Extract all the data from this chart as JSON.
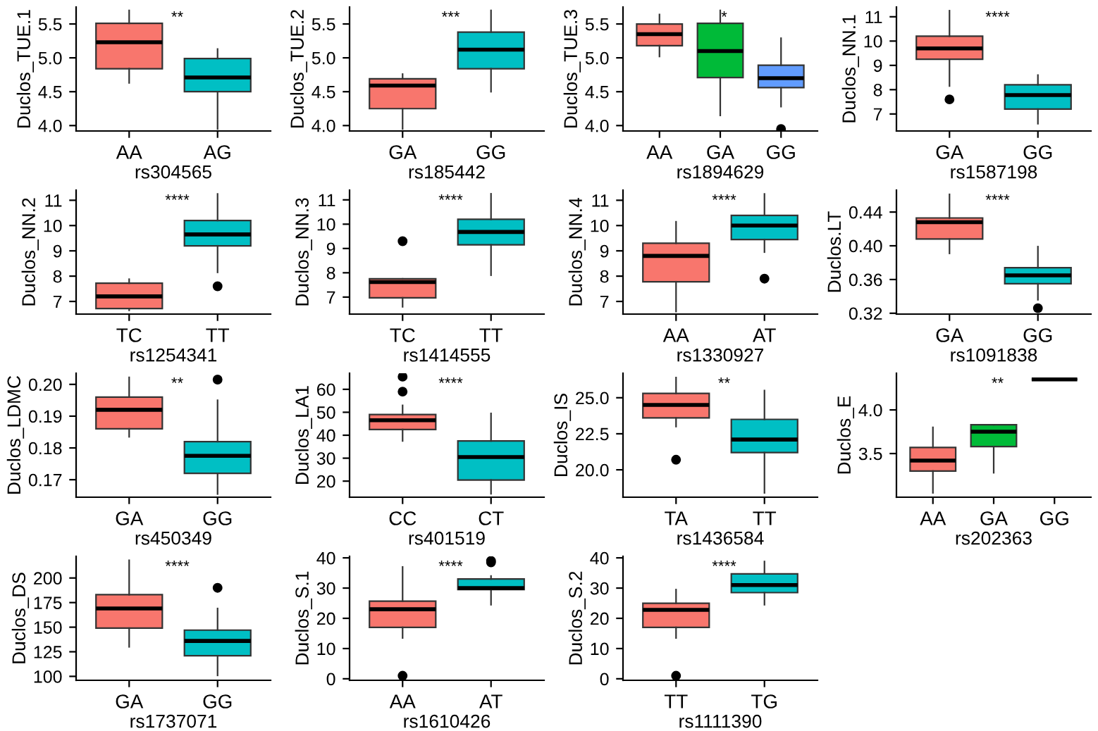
{
  "chart_data": [
    {
      "type": "box",
      "xlabel": "rs304565",
      "ylabel": "Duclos_TUE.1",
      "categories": [
        "AA",
        "AG"
      ],
      "colors": [
        "#f8766d",
        "#00bfc4"
      ],
      "ylim": [
        3.92,
        5.75
      ],
      "yticks": [
        {
          "value": 4.0,
          "label": "4.0"
        },
        {
          "value": 4.5,
          "label": "4.5"
        },
        {
          "value": 5.0,
          "label": "5.0"
        },
        {
          "value": 5.5,
          "label": "5.5"
        }
      ],
      "annotations": [
        "**"
      ],
      "boxes": [
        {
          "low": 4.63,
          "q1": 4.84,
          "median": 5.23,
          "q3": 5.51,
          "high": 5.7
        },
        {
          "low": 3.95,
          "q1": 4.5,
          "median": 4.71,
          "q3": 4.99,
          "high": 5.13
        }
      ]
    },
    {
      "type": "box",
      "xlabel": "rs185442",
      "ylabel": "Duclos_TUE.2",
      "categories": [
        "GA",
        "GG"
      ],
      "colors": [
        "#f8766d",
        "#00bfc4"
      ],
      "ylim": [
        3.92,
        5.75
      ],
      "yticks": [
        {
          "value": 4.0,
          "label": "4.0"
        },
        {
          "value": 4.5,
          "label": "4.5"
        },
        {
          "value": 5.0,
          "label": "5.0"
        },
        {
          "value": 5.5,
          "label": "5.5"
        }
      ],
      "annotations": [
        "***"
      ],
      "boxes": [
        {
          "low": 3.95,
          "q1": 4.25,
          "median": 4.59,
          "q3": 4.69,
          "high": 4.76
        },
        {
          "low": 4.5,
          "q1": 4.84,
          "median": 5.12,
          "q3": 5.38,
          "high": 5.7
        }
      ]
    },
    {
      "type": "box",
      "xlabel": "rs1894629",
      "ylabel": "Duclos_TUE.3",
      "categories": [
        "AA",
        "GA",
        "GG"
      ],
      "colors": [
        "#f8766d",
        "#00ba38",
        "#619cff"
      ],
      "ylim": [
        3.92,
        5.75
      ],
      "yticks": [
        {
          "value": 4.0,
          "label": "4.0"
        },
        {
          "value": 4.5,
          "label": "4.5"
        },
        {
          "value": 5.0,
          "label": "5.0"
        },
        {
          "value": 5.5,
          "label": "5.5"
        }
      ],
      "annotations": [
        "*"
      ],
      "boxes": [
        {
          "low": 5.02,
          "q1": 5.18,
          "median": 5.35,
          "q3": 5.5,
          "high": 5.64
        },
        {
          "low": 4.15,
          "q1": 4.71,
          "median": 5.1,
          "q3": 5.51,
          "high": 5.7
        },
        {
          "low": 4.28,
          "q1": 4.56,
          "median": 4.7,
          "q3": 4.89,
          "high": 5.29,
          "outliers": [
            3.95
          ]
        }
      ]
    },
    {
      "type": "box",
      "xlabel": "rs1587198",
      "ylabel": "Duclos_NN.1",
      "categories": [
        "GA",
        "GG"
      ],
      "colors": [
        "#f8766d",
        "#00bfc4"
      ],
      "ylim": [
        6.3,
        11.4
      ],
      "yticks": [
        7,
        8,
        9,
        10,
        11
      ],
      "annotations": [
        "****"
      ],
      "boxes": [
        {
          "low": 8.15,
          "q1": 9.25,
          "median": 9.7,
          "q3": 10.2,
          "high": 11.25,
          "outliers": [
            7.6
          ]
        },
        {
          "low": 6.6,
          "q1": 7.2,
          "median": 7.78,
          "q3": 8.2,
          "high": 8.6
        }
      ]
    },
    {
      "type": "box",
      "xlabel": "rs1254341",
      "ylabel": "Duclos_NN.2",
      "categories": [
        "TC",
        "TT"
      ],
      "colors": [
        "#f8766d",
        "#00bfc4"
      ],
      "ylim": [
        6.5,
        11.4
      ],
      "yticks": [
        7,
        8,
        9,
        10,
        11
      ],
      "annotations": [
        "****"
      ],
      "boxes": [
        {
          "low": 6.65,
          "q1": 6.72,
          "median": 7.2,
          "q3": 7.72,
          "high": 7.88
        },
        {
          "low": 8.15,
          "q1": 9.2,
          "median": 9.65,
          "q3": 10.2,
          "high": 11.25,
          "outliers": [
            7.6
          ]
        }
      ]
    },
    {
      "type": "box",
      "xlabel": "rs1414555",
      "ylabel": "Duclos_NN.3",
      "categories": [
        "TC",
        "TT"
      ],
      "colors": [
        "#f8766d",
        "#00bfc4"
      ],
      "ylim": [
        6.3,
        11.4
      ],
      "yticks": [
        7,
        8,
        9,
        10,
        11
      ],
      "annotations": [
        "****"
      ],
      "boxes": [
        {
          "low": 6.6,
          "q1": 6.97,
          "median": 7.62,
          "q3": 7.75,
          "high": 7.75,
          "outliers": [
            9.3
          ]
        },
        {
          "low": 7.9,
          "q1": 9.15,
          "median": 9.68,
          "q3": 10.2,
          "high": 11.25
        }
      ]
    },
    {
      "type": "box",
      "xlabel": "rs1330927",
      "ylabel": "Duclos_NN.4",
      "categories": [
        "AA",
        "AT"
      ],
      "colors": [
        "#f8766d",
        "#00bfc4"
      ],
      "ylim": [
        6.5,
        11.4
      ],
      "yticks": [
        7,
        8,
        9,
        10,
        11
      ],
      "annotations": [
        "****"
      ],
      "boxes": [
        {
          "low": 6.6,
          "q1": 7.78,
          "median": 8.8,
          "q3": 9.3,
          "high": 10.15
        },
        {
          "low": 8.95,
          "q1": 9.45,
          "median": 10.0,
          "q3": 10.4,
          "high": 11.25,
          "outliers": [
            7.9
          ]
        }
      ]
    },
    {
      "type": "box",
      "xlabel": "rs1091838",
      "ylabel": "Duclos.LT",
      "categories": [
        "GA",
        "GG"
      ],
      "colors": [
        "#f8766d",
        "#00bfc4"
      ],
      "ylim": [
        0.319,
        0.466
      ],
      "yticks": [
        {
          "value": 0.32,
          "label": "0.32"
        },
        {
          "value": 0.36,
          "label": "0.36"
        },
        {
          "value": 0.4,
          "label": "0.40"
        },
        {
          "value": 0.44,
          "label": "0.44"
        }
      ],
      "annotations": [
        "****"
      ],
      "boxes": [
        {
          "low": 0.391,
          "q1": 0.408,
          "median": 0.428,
          "q3": 0.433,
          "high": 0.461
        },
        {
          "low": 0.336,
          "q1": 0.355,
          "median": 0.365,
          "q3": 0.374,
          "high": 0.399,
          "outliers": [
            0.326
          ]
        }
      ]
    },
    {
      "type": "box",
      "xlabel": "rs450349",
      "ylabel": "Duclos_LDMC",
      "categories": [
        "GA",
        "GG"
      ],
      "colors": [
        "#f8766d",
        "#00bfc4"
      ],
      "ylim": [
        0.1645,
        0.2035
      ],
      "yticks": [
        {
          "value": 0.17,
          "label": "0.17"
        },
        {
          "value": 0.18,
          "label": "0.18"
        },
        {
          "value": 0.19,
          "label": "0.19"
        },
        {
          "value": 0.2,
          "label": "0.20"
        }
      ],
      "annotations": [
        "**"
      ],
      "boxes": [
        {
          "low": 0.1835,
          "q1": 0.186,
          "median": 0.192,
          "q3": 0.196,
          "high": 0.2022
        },
        {
          "low": 0.1655,
          "q1": 0.172,
          "median": 0.1775,
          "q3": 0.182,
          "high": 0.195,
          "outliers": [
            0.2015
          ]
        }
      ]
    },
    {
      "type": "box",
      "xlabel": "rs401519",
      "ylabel": "Duclos_LA1",
      "categories": [
        "CC",
        "CT"
      ],
      "colors": [
        "#f8766d",
        "#00bfc4"
      ],
      "ylim": [
        13,
        67
      ],
      "yticks": [
        20,
        30,
        40,
        50,
        60
      ],
      "annotations": [
        "****"
      ],
      "boxes": [
        {
          "low": 37.5,
          "q1": 42.5,
          "median": 46.5,
          "q3": 49,
          "high": 53,
          "outliers": [
            59,
            65.5
          ]
        },
        {
          "low": 14.5,
          "q1": 20.5,
          "median": 30.5,
          "q3": 37.5,
          "high": 49.5
        }
      ]
    },
    {
      "type": "box",
      "xlabel": "rs1436584",
      "ylabel": "Duclos_IS",
      "categories": [
        "TA",
        "TT"
      ],
      "colors": [
        "#f8766d",
        "#00bfc4"
      ],
      "ylim": [
        18.1,
        26.7
      ],
      "yticks": [
        {
          "value": 20,
          "label": "20.0"
        },
        {
          "value": 22.5,
          "label": "22.5"
        },
        {
          "value": 25,
          "label": "25.0"
        }
      ],
      "annotations": [
        "**"
      ],
      "boxes": [
        {
          "low": 23.0,
          "q1": 23.6,
          "median": 24.5,
          "q3": 25.3,
          "high": 26.4,
          "outliers": [
            20.7
          ]
        },
        {
          "low": 18.4,
          "q1": 21.2,
          "median": 22.1,
          "q3": 23.5,
          "high": 25.5
        }
      ]
    },
    {
      "type": "box",
      "xlabel": "rs202363",
      "ylabel": "Duclos_E",
      "categories": [
        "AA",
        "GA",
        "GG"
      ],
      "colors": [
        "#f8766d",
        "#00ba38",
        "#000000"
      ],
      "ylim": [
        3.0,
        4.42
      ],
      "yticks": [
        {
          "value": 3.5,
          "label": "3.5"
        },
        {
          "value": 4.0,
          "label": "4.0"
        }
      ],
      "annotations": [
        "**"
      ],
      "boxes": [
        {
          "low": 3.05,
          "q1": 3.3,
          "median": 3.42,
          "q3": 3.57,
          "high": 3.8
        },
        {
          "low": 3.28,
          "q1": 3.58,
          "median": 3.75,
          "q3": 3.83,
          "high": 3.83
        },
        {
          "low": 4.35,
          "q1": 4.35,
          "median": 4.35,
          "q3": 4.35,
          "high": 4.35
        }
      ]
    },
    {
      "type": "box",
      "xlabel": "rs1737071",
      "ylabel": "Duclos_DS",
      "categories": [
        "GA",
        "GG"
      ],
      "colors": [
        "#f8766d",
        "#00bfc4"
      ],
      "ylim": [
        96,
        222
      ],
      "yticks": [
        100,
        125,
        150,
        175,
        200
      ],
      "annotations": [
        "****"
      ],
      "boxes": [
        {
          "low": 130,
          "q1": 149,
          "median": 169,
          "q3": 183,
          "high": 218
        },
        {
          "low": 101,
          "q1": 121,
          "median": 136,
          "q3": 147,
          "high": 169,
          "outliers": [
            190
          ]
        }
      ]
    },
    {
      "type": "box",
      "xlabel": "rs1610426",
      "ylabel": "Duclos_S.1",
      "categories": [
        "AA",
        "AT"
      ],
      "colors": [
        "#f8766d",
        "#00bfc4"
      ],
      "ylim": [
        -0.5,
        40.5
      ],
      "yticks": [
        0,
        10,
        20,
        30,
        40
      ],
      "annotations": [
        "****"
      ],
      "boxes": [
        {
          "low": 13.5,
          "q1": 17,
          "median": 23,
          "q3": 25.7,
          "high": 37,
          "outliers": [
            1
          ]
        },
        {
          "low": 24.5,
          "q1": 29.5,
          "median": 30,
          "q3": 33,
          "high": 34,
          "outliers": [
            38.5,
            39
          ]
        }
      ]
    },
    {
      "type": "box",
      "xlabel": "rs1111390",
      "ylabel": "Duclos_S.2",
      "categories": [
        "TT",
        "TG"
      ],
      "colors": [
        "#f8766d",
        "#00bfc4"
      ],
      "ylim": [
        -0.5,
        40.5
      ],
      "yticks": [
        0,
        10,
        20,
        30,
        40
      ],
      "annotations": [
        "****"
      ],
      "boxes": [
        {
          "low": 13.5,
          "q1": 17,
          "median": 22.8,
          "q3": 25,
          "high": 29.5,
          "outliers": [
            1
          ]
        },
        {
          "low": 24.5,
          "q1": 28.5,
          "median": 31,
          "q3": 34.7,
          "high": 38.8
        }
      ]
    }
  ]
}
